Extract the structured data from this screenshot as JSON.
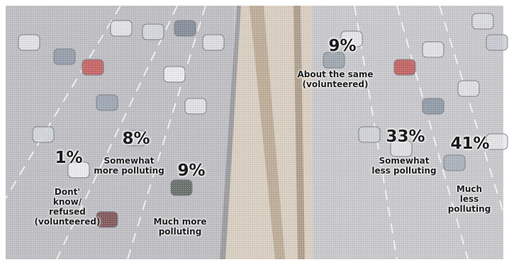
{
  "chart_data": {
    "type": "pie",
    "title": "",
    "unit": "%",
    "categories": [
      "Much less polluting",
      "Somewhat less polluting",
      "About the same (volunteered)",
      "Much more polluting",
      "Somewhat more polluting",
      "Don't know/ refused (volunteered)"
    ],
    "values": [
      41,
      33,
      9,
      9,
      8,
      1
    ],
    "value_labels": [
      "41%",
      "33%",
      "9%",
      "9%",
      "8%",
      "1%"
    ],
    "label_lines": [
      [
        "Much",
        "less polluting"
      ],
      [
        "Somewhat",
        "less polluting"
      ],
      [
        "About the same",
        "(volunteered)"
      ],
      [
        "Much more",
        "polluting"
      ],
      [
        "Somewhat",
        "more polluting"
      ],
      [
        "Dont'",
        "know/",
        "refused",
        "(volunteered)"
      ]
    ]
  },
  "colors": {
    "road": "#c9c9cd",
    "road_dark": "#a9a9ae",
    "median": "#d9cfc2",
    "median_rail": "#b7a48e",
    "lane_mark": "#f3f3f3",
    "text": "#1c1c1c"
  },
  "background": "freeway-traffic-photo"
}
